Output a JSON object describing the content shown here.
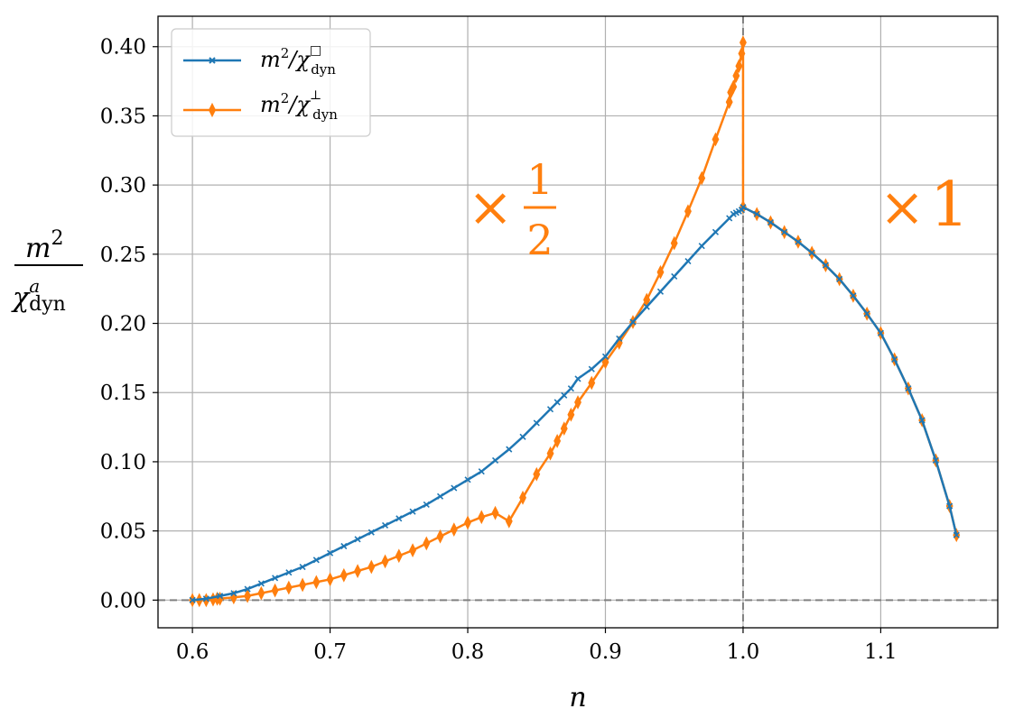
{
  "chart_data": {
    "type": "line",
    "title": "",
    "xlabel": "n",
    "ylabel": {
      "numerator": "m",
      "numerator_sup": "2",
      "denominator": "χ",
      "denominator_sup": "a",
      "denominator_sub": "dyn"
    },
    "xlim": [
      0.575,
      1.185
    ],
    "ylim": [
      -0.02,
      0.422
    ],
    "xticks": [
      "0.6",
      "0.7",
      "0.8",
      "0.9",
      "1.0",
      "1.1"
    ],
    "yticks": [
      "0.00",
      "0.05",
      "0.10",
      "0.15",
      "0.20",
      "0.25",
      "0.30",
      "0.35",
      "0.40"
    ],
    "grid": true,
    "legend_position": "top-left",
    "reference_lines": {
      "vertical_x": 1.0,
      "horizontal_y": 0.0
    },
    "series": [
      {
        "name": "m²/χ□dyn",
        "legend": {
          "base": "m",
          "sup": "2",
          "chi": "/χ",
          "chi_sup": "□",
          "chi_sub": "dyn"
        },
        "color": "#1f77b4",
        "marker": "x",
        "x": [
          0.6,
          0.61,
          0.62,
          0.63,
          0.64,
          0.65,
          0.66,
          0.67,
          0.68,
          0.69,
          0.7,
          0.71,
          0.72,
          0.73,
          0.74,
          0.75,
          0.76,
          0.77,
          0.78,
          0.79,
          0.8,
          0.81,
          0.82,
          0.83,
          0.84,
          0.85,
          0.86,
          0.865,
          0.87,
          0.875,
          0.88,
          0.89,
          0.9,
          0.91,
          0.92,
          0.93,
          0.94,
          0.95,
          0.96,
          0.97,
          0.98,
          0.99,
          0.993,
          0.995,
          0.997,
          0.999,
          1.0,
          1.01,
          1.02,
          1.03,
          1.04,
          1.05,
          1.06,
          1.07,
          1.08,
          1.09,
          1.1,
          1.11,
          1.12,
          1.13,
          1.14,
          1.15,
          1.155
        ],
        "y": [
          0.0,
          0.001,
          0.003,
          0.005,
          0.008,
          0.012,
          0.016,
          0.02,
          0.024,
          0.029,
          0.034,
          0.039,
          0.044,
          0.049,
          0.054,
          0.059,
          0.064,
          0.069,
          0.075,
          0.081,
          0.087,
          0.093,
          0.101,
          0.109,
          0.118,
          0.128,
          0.138,
          0.143,
          0.148,
          0.153,
          0.16,
          0.167,
          0.176,
          0.189,
          0.201,
          0.212,
          0.223,
          0.234,
          0.245,
          0.256,
          0.266,
          0.276,
          0.279,
          0.28,
          0.281,
          0.282,
          0.284,
          0.279,
          0.273,
          0.266,
          0.259,
          0.251,
          0.242,
          0.232,
          0.22,
          0.207,
          0.193,
          0.174,
          0.153,
          0.13,
          0.101,
          0.068,
          0.047
        ]
      },
      {
        "name": "m²/χ⊥dyn",
        "legend": {
          "base": "m",
          "sup": "2",
          "chi": "/χ",
          "chi_sup": "⊥",
          "chi_sub": "dyn"
        },
        "color": "#ff7f0e",
        "marker": "thin_diamond",
        "x": [
          0.6,
          0.605,
          0.61,
          0.615,
          0.618,
          0.62,
          0.63,
          0.64,
          0.65,
          0.66,
          0.67,
          0.68,
          0.69,
          0.7,
          0.71,
          0.72,
          0.73,
          0.74,
          0.75,
          0.76,
          0.77,
          0.78,
          0.79,
          0.8,
          0.81,
          0.82,
          0.83,
          0.84,
          0.85,
          0.86,
          0.865,
          0.87,
          0.875,
          0.88,
          0.89,
          0.9,
          0.91,
          0.92,
          0.93,
          0.94,
          0.95,
          0.96,
          0.97,
          0.98,
          0.99,
          0.991,
          0.993,
          0.995,
          0.997,
          0.999,
          1.0,
          1.0,
          1.01,
          1.02,
          1.03,
          1.04,
          1.05,
          1.06,
          1.07,
          1.08,
          1.09,
          1.1,
          1.11,
          1.12,
          1.13,
          1.14,
          1.15,
          1.155
        ],
        "y": [
          0.0,
          0.0,
          0.0,
          0.0005,
          0.001,
          0.001,
          0.002,
          0.003,
          0.005,
          0.007,
          0.009,
          0.011,
          0.013,
          0.015,
          0.018,
          0.021,
          0.024,
          0.028,
          0.032,
          0.036,
          0.041,
          0.046,
          0.051,
          0.056,
          0.06,
          0.063,
          0.057,
          0.074,
          0.091,
          0.106,
          0.115,
          0.124,
          0.134,
          0.143,
          0.157,
          0.172,
          0.186,
          0.201,
          0.217,
          0.237,
          0.258,
          0.281,
          0.305,
          0.333,
          0.36,
          0.367,
          0.371,
          0.379,
          0.386,
          0.395,
          0.403,
          0.284,
          0.279,
          0.273,
          0.266,
          0.259,
          0.251,
          0.242,
          0.232,
          0.22,
          0.207,
          0.193,
          0.174,
          0.153,
          0.13,
          0.101,
          0.068,
          0.047
        ]
      }
    ],
    "annotations": [
      {
        "prefix": "×",
        "numerator": "1",
        "denominator": "2"
      },
      {
        "prefix": "×",
        "value": "1"
      }
    ]
  }
}
